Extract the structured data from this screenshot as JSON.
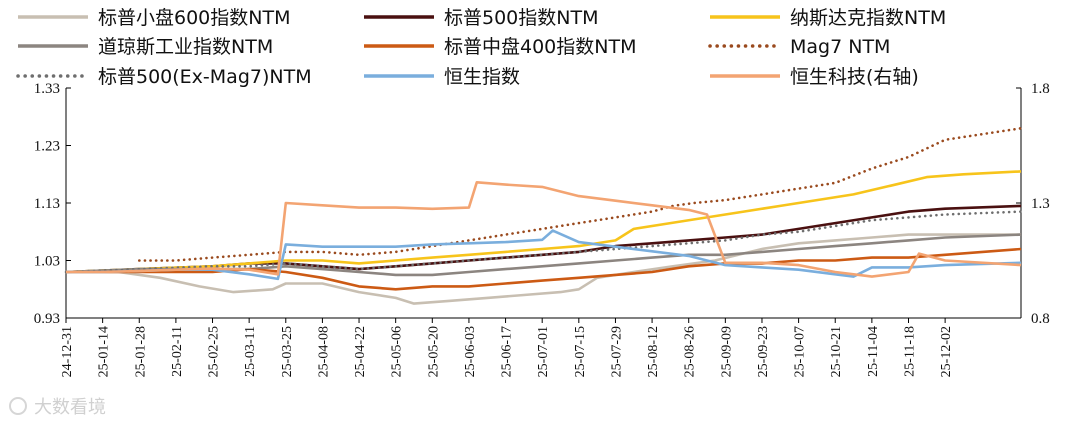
{
  "chart_data": {
    "type": "line",
    "title": "",
    "xlabel": "",
    "ylabel": "",
    "y_left": {
      "ylim": [
        0.93,
        1.33
      ],
      "ticks": [
        "0.93",
        "1.03",
        "1.13",
        "1.23",
        "1.33"
      ]
    },
    "y_right": {
      "ylim": [
        0.8,
        1.8
      ],
      "ticks": [
        "0.8",
        "1.3",
        "1.8"
      ]
    },
    "x_range": [
      "2024-12-31",
      "2025-12-31"
    ],
    "x_ticks": [
      "24-12-31",
      "25-01-14",
      "25-01-28",
      "25-02-11",
      "25-02-25",
      "25-03-11",
      "25-03-25",
      "25-04-08",
      "25-04-22",
      "25-05-06",
      "25-05-20",
      "25-06-03",
      "25-06-17",
      "25-07-01",
      "25-07-15",
      "25-07-29",
      "25-08-12",
      "25-08-26",
      "25-09-09",
      "25-09-23",
      "25-10-07",
      "25-10-21",
      "25-11-04",
      "25-11-18",
      "25-12-02"
    ],
    "grid": false,
    "legend_position": "top",
    "series": [
      {
        "name": "标普小盘600指数NTM",
        "color": "#c8bfb2",
        "dash": "solid",
        "axis": "left",
        "points": [
          [
            "2024-12-31",
            1.01
          ],
          [
            "2025-01-20",
            1.01
          ],
          [
            "2025-02-05",
            1.0
          ],
          [
            "2025-02-20",
            0.985
          ],
          [
            "2025-03-05",
            0.975
          ],
          [
            "2025-03-20",
            0.98
          ],
          [
            "2025-03-25",
            0.99
          ],
          [
            "2025-04-08",
            0.99
          ],
          [
            "2025-04-22",
            0.975
          ],
          [
            "2025-05-06",
            0.965
          ],
          [
            "2025-05-13",
            0.955
          ],
          [
            "2025-05-27",
            0.96
          ],
          [
            "2025-06-10",
            0.965
          ],
          [
            "2025-06-24",
            0.97
          ],
          [
            "2025-07-08",
            0.975
          ],
          [
            "2025-07-15",
            0.98
          ],
          [
            "2025-07-22",
            1.0
          ],
          [
            "2025-08-05",
            1.01
          ],
          [
            "2025-08-20",
            1.02
          ],
          [
            "2025-09-05",
            1.03
          ],
          [
            "2025-09-23",
            1.05
          ],
          [
            "2025-10-07",
            1.06
          ],
          [
            "2025-10-21",
            1.065
          ],
          [
            "2025-11-04",
            1.07
          ],
          [
            "2025-11-18",
            1.075
          ],
          [
            "2025-12-02",
            1.075
          ],
          [
            "2025-12-31",
            1.075
          ]
        ]
      },
      {
        "name": "标普500指数NTM",
        "color": "#4a1010",
        "dash": "solid",
        "axis": "left",
        "points": [
          [
            "2024-12-31",
            1.01
          ],
          [
            "2025-01-28",
            1.015
          ],
          [
            "2025-02-25",
            1.02
          ],
          [
            "2025-03-11",
            1.025
          ],
          [
            "2025-03-25",
            1.025
          ],
          [
            "2025-04-08",
            1.02
          ],
          [
            "2025-04-22",
            1.015
          ],
          [
            "2025-05-06",
            1.02
          ],
          [
            "2025-05-20",
            1.025
          ],
          [
            "2025-06-03",
            1.03
          ],
          [
            "2025-06-17",
            1.035
          ],
          [
            "2025-07-01",
            1.04
          ],
          [
            "2025-07-15",
            1.045
          ],
          [
            "2025-07-29",
            1.055
          ],
          [
            "2025-08-12",
            1.06
          ],
          [
            "2025-08-26",
            1.065
          ],
          [
            "2025-09-09",
            1.07
          ],
          [
            "2025-09-23",
            1.075
          ],
          [
            "2025-10-07",
            1.085
          ],
          [
            "2025-10-21",
            1.095
          ],
          [
            "2025-11-04",
            1.105
          ],
          [
            "2025-11-18",
            1.115
          ],
          [
            "2025-12-02",
            1.12
          ],
          [
            "2025-12-31",
            1.125
          ]
        ]
      },
      {
        "name": "纳斯达克指数NTM",
        "color": "#f7c41b",
        "dash": "solid",
        "axis": "left",
        "points": [
          [
            "2024-12-31",
            1.01
          ],
          [
            "2025-01-28",
            1.015
          ],
          [
            "2025-02-25",
            1.02
          ],
          [
            "2025-03-11",
            1.025
          ],
          [
            "2025-03-25",
            1.03
          ],
          [
            "2025-04-08",
            1.03
          ],
          [
            "2025-04-22",
            1.025
          ],
          [
            "2025-05-06",
            1.03
          ],
          [
            "2025-05-20",
            1.035
          ],
          [
            "2025-06-03",
            1.04
          ],
          [
            "2025-06-17",
            1.045
          ],
          [
            "2025-07-01",
            1.05
          ],
          [
            "2025-07-15",
            1.055
          ],
          [
            "2025-07-29",
            1.065
          ],
          [
            "2025-08-05",
            1.085
          ],
          [
            "2025-08-19",
            1.095
          ],
          [
            "2025-09-02",
            1.105
          ],
          [
            "2025-09-16",
            1.115
          ],
          [
            "2025-09-30",
            1.125
          ],
          [
            "2025-10-14",
            1.135
          ],
          [
            "2025-10-28",
            1.145
          ],
          [
            "2025-11-11",
            1.16
          ],
          [
            "2025-11-25",
            1.175
          ],
          [
            "2025-12-09",
            1.18
          ],
          [
            "2025-12-31",
            1.185
          ]
        ]
      },
      {
        "name": "道琼斯工业指数NTM",
        "color": "#8c8580",
        "dash": "solid",
        "axis": "left",
        "points": [
          [
            "2024-12-31",
            1.01
          ],
          [
            "2025-01-28",
            1.015
          ],
          [
            "2025-02-25",
            1.015
          ],
          [
            "2025-03-11",
            1.015
          ],
          [
            "2025-03-25",
            1.02
          ],
          [
            "2025-04-08",
            1.015
          ],
          [
            "2025-04-22",
            1.01
          ],
          [
            "2025-05-06",
            1.005
          ],
          [
            "2025-05-20",
            1.005
          ],
          [
            "2025-06-03",
            1.01
          ],
          [
            "2025-06-17",
            1.015
          ],
          [
            "2025-07-01",
            1.02
          ],
          [
            "2025-07-15",
            1.025
          ],
          [
            "2025-07-29",
            1.03
          ],
          [
            "2025-08-12",
            1.035
          ],
          [
            "2025-08-26",
            1.04
          ],
          [
            "2025-09-09",
            1.04
          ],
          [
            "2025-09-23",
            1.045
          ],
          [
            "2025-10-07",
            1.05
          ],
          [
            "2025-10-21",
            1.055
          ],
          [
            "2025-11-04",
            1.06
          ],
          [
            "2025-11-18",
            1.065
          ],
          [
            "2025-12-02",
            1.07
          ],
          [
            "2025-12-31",
            1.075
          ]
        ]
      },
      {
        "name": "标普中盘400指数NTM",
        "color": "#cc5a14",
        "dash": "solid",
        "axis": "left",
        "points": [
          [
            "2024-12-31",
            1.01
          ],
          [
            "2025-01-28",
            1.01
          ],
          [
            "2025-02-25",
            1.01
          ],
          [
            "2025-03-11",
            1.015
          ],
          [
            "2025-03-25",
            1.01
          ],
          [
            "2025-04-08",
            1.0
          ],
          [
            "2025-04-22",
            0.985
          ],
          [
            "2025-05-06",
            0.98
          ],
          [
            "2025-05-20",
            0.985
          ],
          [
            "2025-06-03",
            0.985
          ],
          [
            "2025-06-17",
            0.99
          ],
          [
            "2025-07-01",
            0.995
          ],
          [
            "2025-07-15",
            1.0
          ],
          [
            "2025-07-29",
            1.005
          ],
          [
            "2025-08-12",
            1.01
          ],
          [
            "2025-08-26",
            1.02
          ],
          [
            "2025-09-09",
            1.025
          ],
          [
            "2025-09-23",
            1.025
          ],
          [
            "2025-10-07",
            1.03
          ],
          [
            "2025-10-21",
            1.03
          ],
          [
            "2025-11-04",
            1.035
          ],
          [
            "2025-11-18",
            1.035
          ],
          [
            "2025-12-02",
            1.04
          ],
          [
            "2025-12-31",
            1.05
          ]
        ]
      },
      {
        "name": "Mag7 NTM",
        "color": "#9a4a1e",
        "dash": "dotted",
        "axis": "left",
        "points": [
          [
            "2025-01-28",
            1.03
          ],
          [
            "2025-02-11",
            1.03
          ],
          [
            "2025-02-25",
            1.035
          ],
          [
            "2025-03-11",
            1.04
          ],
          [
            "2025-03-25",
            1.045
          ],
          [
            "2025-04-08",
            1.045
          ],
          [
            "2025-04-22",
            1.04
          ],
          [
            "2025-05-06",
            1.045
          ],
          [
            "2025-05-20",
            1.055
          ],
          [
            "2025-06-03",
            1.065
          ],
          [
            "2025-06-17",
            1.075
          ],
          [
            "2025-07-01",
            1.085
          ],
          [
            "2025-07-15",
            1.095
          ],
          [
            "2025-07-29",
            1.105
          ],
          [
            "2025-08-12",
            1.115
          ],
          [
            "2025-08-20",
            1.125
          ],
          [
            "2025-08-28",
            1.13
          ],
          [
            "2025-09-09",
            1.135
          ],
          [
            "2025-09-23",
            1.145
          ],
          [
            "2025-10-07",
            1.155
          ],
          [
            "2025-10-21",
            1.165
          ],
          [
            "2025-11-04",
            1.19
          ],
          [
            "2025-11-18",
            1.21
          ],
          [
            "2025-12-02",
            1.24
          ],
          [
            "2025-12-31",
            1.26
          ]
        ]
      },
      {
        "name": "标普500(Ex-Mag7)NTM",
        "color": "#6e6e6e",
        "dash": "dotted",
        "axis": "left",
        "points": [
          [
            "2024-12-31",
            1.01
          ],
          [
            "2025-01-28",
            1.015
          ],
          [
            "2025-02-25",
            1.02
          ],
          [
            "2025-03-11",
            1.02
          ],
          [
            "2025-03-25",
            1.025
          ],
          [
            "2025-04-08",
            1.02
          ],
          [
            "2025-04-22",
            1.015
          ],
          [
            "2025-05-06",
            1.02
          ],
          [
            "2025-05-20",
            1.025
          ],
          [
            "2025-06-03",
            1.03
          ],
          [
            "2025-06-17",
            1.035
          ],
          [
            "2025-07-01",
            1.04
          ],
          [
            "2025-07-15",
            1.045
          ],
          [
            "2025-07-29",
            1.05
          ],
          [
            "2025-08-12",
            1.055
          ],
          [
            "2025-08-26",
            1.06
          ],
          [
            "2025-09-09",
            1.065
          ],
          [
            "2025-09-23",
            1.075
          ],
          [
            "2025-10-07",
            1.08
          ],
          [
            "2025-10-21",
            1.09
          ],
          [
            "2025-11-04",
            1.1
          ],
          [
            "2025-11-18",
            1.105
          ],
          [
            "2025-12-02",
            1.11
          ],
          [
            "2025-12-31",
            1.115
          ]
        ]
      },
      {
        "name": "恒生指数",
        "color": "#7aaedd",
        "dash": "solid",
        "axis": "right",
        "points": [
          [
            "2024-12-31",
            1.0
          ],
          [
            "2025-01-14",
            1.0
          ],
          [
            "2025-01-28",
            1.005
          ],
          [
            "2025-02-11",
            1.01
          ],
          [
            "2025-02-25",
            1.01
          ],
          [
            "2025-03-11",
            0.99
          ],
          [
            "2025-03-22",
            0.97
          ],
          [
            "2025-03-25",
            1.12
          ],
          [
            "2025-04-08",
            1.11
          ],
          [
            "2025-04-22",
            1.11
          ],
          [
            "2025-05-06",
            1.11
          ],
          [
            "2025-05-20",
            1.12
          ],
          [
            "2025-06-03",
            1.125
          ],
          [
            "2025-06-17",
            1.13
          ],
          [
            "2025-07-01",
            1.14
          ],
          [
            "2025-07-05",
            1.18
          ],
          [
            "2025-07-15",
            1.13
          ],
          [
            "2025-07-29",
            1.11
          ],
          [
            "2025-08-12",
            1.09
          ],
          [
            "2025-08-26",
            1.07
          ],
          [
            "2025-09-09",
            1.03
          ],
          [
            "2025-09-23",
            1.02
          ],
          [
            "2025-10-07",
            1.01
          ],
          [
            "2025-10-21",
            0.99
          ],
          [
            "2025-10-28",
            0.98
          ],
          [
            "2025-11-04",
            1.02
          ],
          [
            "2025-11-18",
            1.02
          ],
          [
            "2025-12-02",
            1.03
          ],
          [
            "2025-12-31",
            1.04
          ]
        ]
      },
      {
        "name": "恒生科技(右轴)",
        "color": "#f3a472",
        "dash": "solid",
        "axis": "right",
        "points": [
          [
            "2024-12-31",
            1.0
          ],
          [
            "2025-01-14",
            1.0
          ],
          [
            "2025-01-28",
            1.005
          ],
          [
            "2025-02-11",
            1.01
          ],
          [
            "2025-02-25",
            1.015
          ],
          [
            "2025-03-11",
            1.01
          ],
          [
            "2025-03-22",
            0.99
          ],
          [
            "2025-03-25",
            1.3
          ],
          [
            "2025-04-08",
            1.29
          ],
          [
            "2025-04-22",
            1.28
          ],
          [
            "2025-05-06",
            1.28
          ],
          [
            "2025-05-20",
            1.275
          ],
          [
            "2025-06-03",
            1.28
          ],
          [
            "2025-06-06",
            1.39
          ],
          [
            "2025-06-17",
            1.38
          ],
          [
            "2025-07-01",
            1.37
          ],
          [
            "2025-07-15",
            1.33
          ],
          [
            "2025-07-29",
            1.31
          ],
          [
            "2025-08-12",
            1.29
          ],
          [
            "2025-08-26",
            1.27
          ],
          [
            "2025-09-02",
            1.25
          ],
          [
            "2025-09-09",
            1.04
          ],
          [
            "2025-09-23",
            1.04
          ],
          [
            "2025-10-07",
            1.03
          ],
          [
            "2025-10-21",
            1.0
          ],
          [
            "2025-11-04",
            0.98
          ],
          [
            "2025-11-18",
            1.0
          ],
          [
            "2025-11-22",
            1.08
          ],
          [
            "2025-12-02",
            1.05
          ],
          [
            "2025-12-31",
            1.03
          ]
        ]
      }
    ]
  },
  "watermark": "大数看境"
}
